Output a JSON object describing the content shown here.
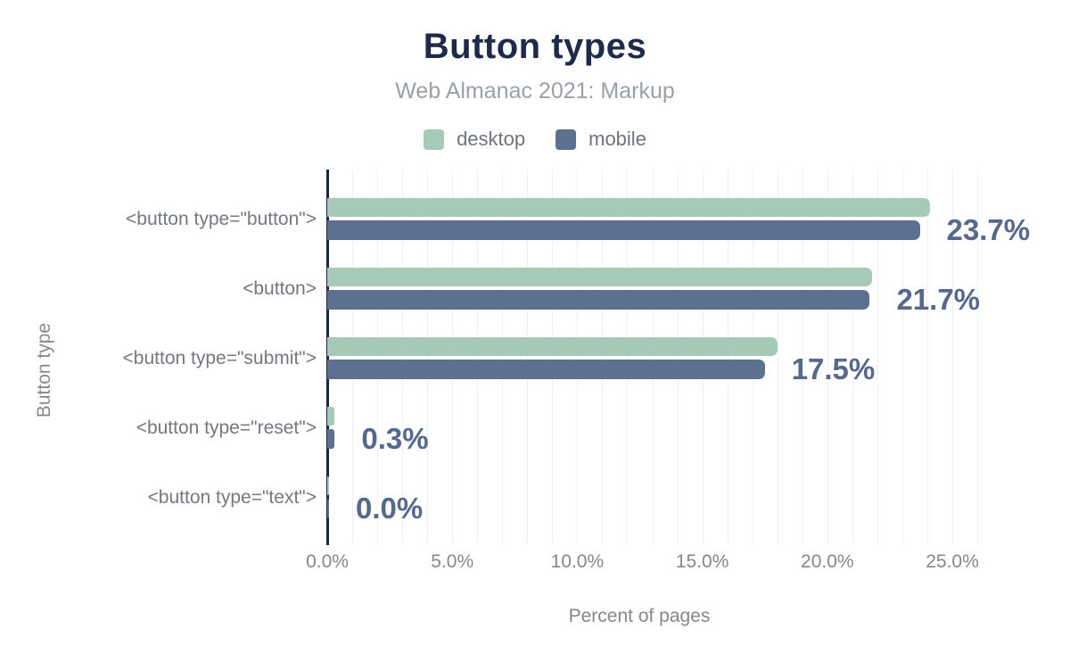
{
  "chart_data": {
    "type": "bar",
    "orientation": "horizontal",
    "title": "Button types",
    "subtitle": "Web Almanac 2021: Markup",
    "xlabel": "Percent of pages",
    "ylabel": "Button type",
    "categories": [
      "<button type=\"button\">",
      "<button>",
      "<button type=\"submit\">",
      "<button type=\"reset\">",
      "<button type=\"text\">"
    ],
    "series": [
      {
        "name": "desktop",
        "color": "#a7cab8",
        "values": [
          24.1,
          21.8,
          18.0,
          0.3,
          0.0
        ]
      },
      {
        "name": "mobile",
        "color": "#5e7090",
        "values": [
          23.7,
          21.7,
          17.5,
          0.3,
          0.0
        ]
      }
    ],
    "value_labels": [
      "23.7%",
      "21.7%",
      "17.5%",
      "0.3%",
      "0.0%"
    ],
    "x_ticks": [
      "0.0%",
      "5.0%",
      "10.0%",
      "15.0%",
      "20.0%",
      "25.0%"
    ],
    "xlim": [
      0,
      26.9
    ],
    "legend_position": "top",
    "grid": "vertical minor gridlines every 1%",
    "colors": {
      "title": "#1d2a49",
      "subtitle": "#9aa0a8",
      "value_label": "#56688c",
      "axis_line": "#1a2742",
      "tick_text": "#83878f",
      "category_text": "#74787f",
      "gridline": "#f0f0f3",
      "background": "#ffffff"
    }
  }
}
